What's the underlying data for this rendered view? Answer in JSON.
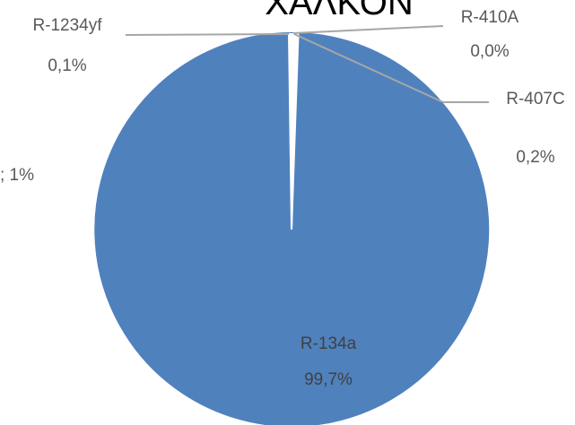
{
  "colors": {
    "slice": "#4f81bd",
    "slice_border": "#ffffff",
    "leader": "#a6a6a6",
    "label_text": "#595959",
    "inside_label_text": "#404040"
  },
  "chart_data": {
    "type": "pie",
    "title": "ΧΑΛΚΟΝ",
    "labels": [
      "R-134a",
      "R-1234yf",
      "R-410A",
      "R-407C"
    ],
    "values": [
      99.7,
      0.1,
      0.0,
      0.2
    ],
    "value_labels": [
      "99,7%",
      "0,1%",
      "0,0%",
      "0,2%"
    ],
    "partial_label_left": "; 1%"
  }
}
